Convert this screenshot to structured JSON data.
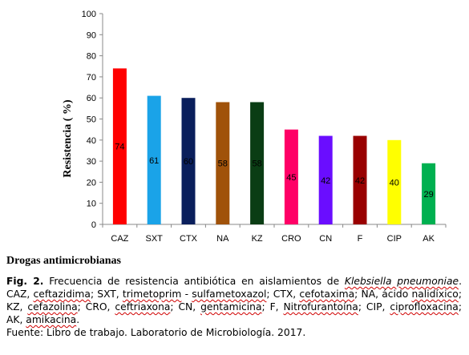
{
  "chart_data": {
    "type": "bar",
    "categories": [
      "CAZ",
      "SXT",
      "CTX",
      "NA",
      "KZ",
      "CRO",
      "CN",
      "F",
      "CIP",
      "AK"
    ],
    "values": [
      74,
      61,
      60,
      58,
      58,
      45,
      42,
      42,
      40,
      29
    ],
    "data_labels": [
      "74",
      "61",
      "60",
      "58",
      "58",
      "45",
      "42",
      "42",
      "40",
      "29"
    ],
    "colors": [
      "#ff0000",
      "#1aa3e8",
      "#0a1f5c",
      "#a0520a",
      "#0a3d14",
      "#ff0066",
      "#6a0dff",
      "#990000",
      "#ffff00",
      "#00b050"
    ],
    "ylabel": "Resistencia ( %)",
    "xlabel": "Drogas antimicrobianas",
    "ylim": [
      0,
      100
    ],
    "yticks": [
      "0",
      "10",
      "20",
      "30",
      "40",
      "50",
      "60",
      "70",
      "80",
      "90",
      "100"
    ],
    "grid": false,
    "legend": "none"
  },
  "caption": {
    "fig_prefix": "Fig. 2.",
    "fig_text": " Frecuencia de resistencia antibiótica en aislamientos de ",
    "organism": "Klebsiella pneumoniae",
    "fig_end": ".",
    "abbr_1": "CAZ, ",
    "w_caz": "ceftazidima",
    "abbr_2": "; SXT, ",
    "w_sxt1": "trimetoprim",
    "abbr_3": " - ",
    "w_sxt2": "sulfametoxazol",
    "abbr_4": "; CTX, ",
    "w_ctx": "cefotaxima",
    "abbr_5": "; NA, ácido ",
    "w_na": "nalidíxico",
    "abbr_6": "; KZ, ",
    "w_kz": "cefazolina",
    "abbr_7": "; CRO, ",
    "w_cro": "ceftriaxona",
    "abbr_8": "; CN, ",
    "w_cn": "gentamicina",
    "abbr_9": "; F, ",
    "w_f": "Nitrofurantoína",
    "abbr_10": "; CIP, ",
    "w_cip": "ciprofloxacina",
    "abbr_11": "; AK, ",
    "w_ak": "amikacina",
    "abbr_12": ".",
    "source": "Fuente: Libro de trabajo. Laboratorio de Microbiología. 2017."
  }
}
